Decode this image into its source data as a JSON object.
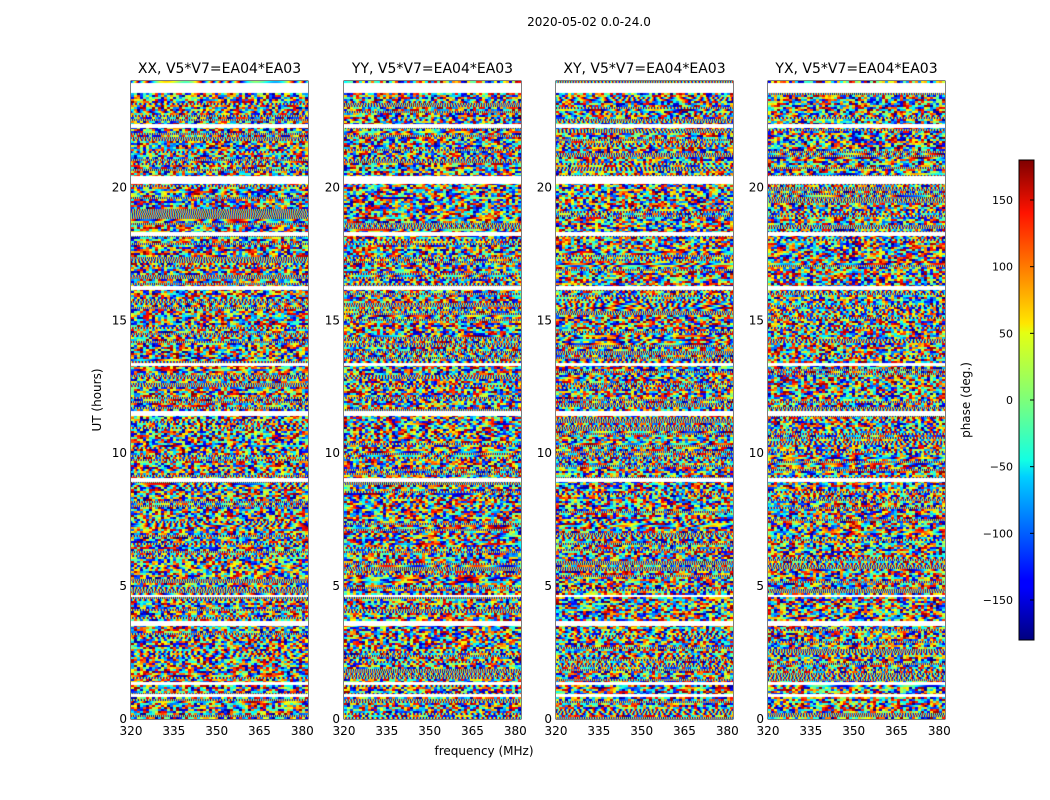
{
  "chart_data": {
    "type": "heatmap",
    "suptitle": "2020-05-02 0.0-24.0",
    "xlabel": "frequency (MHz)",
    "ylabel": "UT (hours)",
    "xlim": [
      320,
      382
    ],
    "ylim": [
      0,
      24
    ],
    "xticks": [
      320,
      335,
      350,
      365,
      380
    ],
    "yticks": [
      0,
      5,
      10,
      15,
      20
    ],
    "panels": [
      {
        "title": "XX, V5*V7=EA04*EA03",
        "seed": 11
      },
      {
        "title": "YY, V5*V7=EA04*EA03",
        "seed": 23
      },
      {
        "title": "XY, V5*V7=EA04*EA03",
        "seed": 37
      },
      {
        "title": "YX, V5*V7=EA04*EA03",
        "seed": 53
      }
    ],
    "flagged_hours": [
      [
        23.55,
        23.95
      ],
      [
        22.25,
        22.4
      ],
      [
        20.15,
        20.45
      ],
      [
        18.2,
        18.35
      ],
      [
        16.15,
        16.3
      ],
      [
        13.3,
        13.4
      ],
      [
        11.4,
        11.6
      ],
      [
        8.95,
        9.1
      ],
      [
        4.6,
        4.7
      ],
      [
        3.5,
        3.7
      ],
      [
        1.3,
        1.4
      ],
      [
        0.85,
        0.95
      ]
    ],
    "colorbar": {
      "label": "phase (deg.)",
      "range": [
        -180,
        180
      ],
      "ticks": [
        150,
        100,
        50,
        0,
        -50,
        -100,
        -150
      ],
      "tick_labels": [
        "150",
        "100",
        "50",
        "0",
        "−50",
        "−100",
        "−150"
      ],
      "colormap": "jet"
    }
  }
}
